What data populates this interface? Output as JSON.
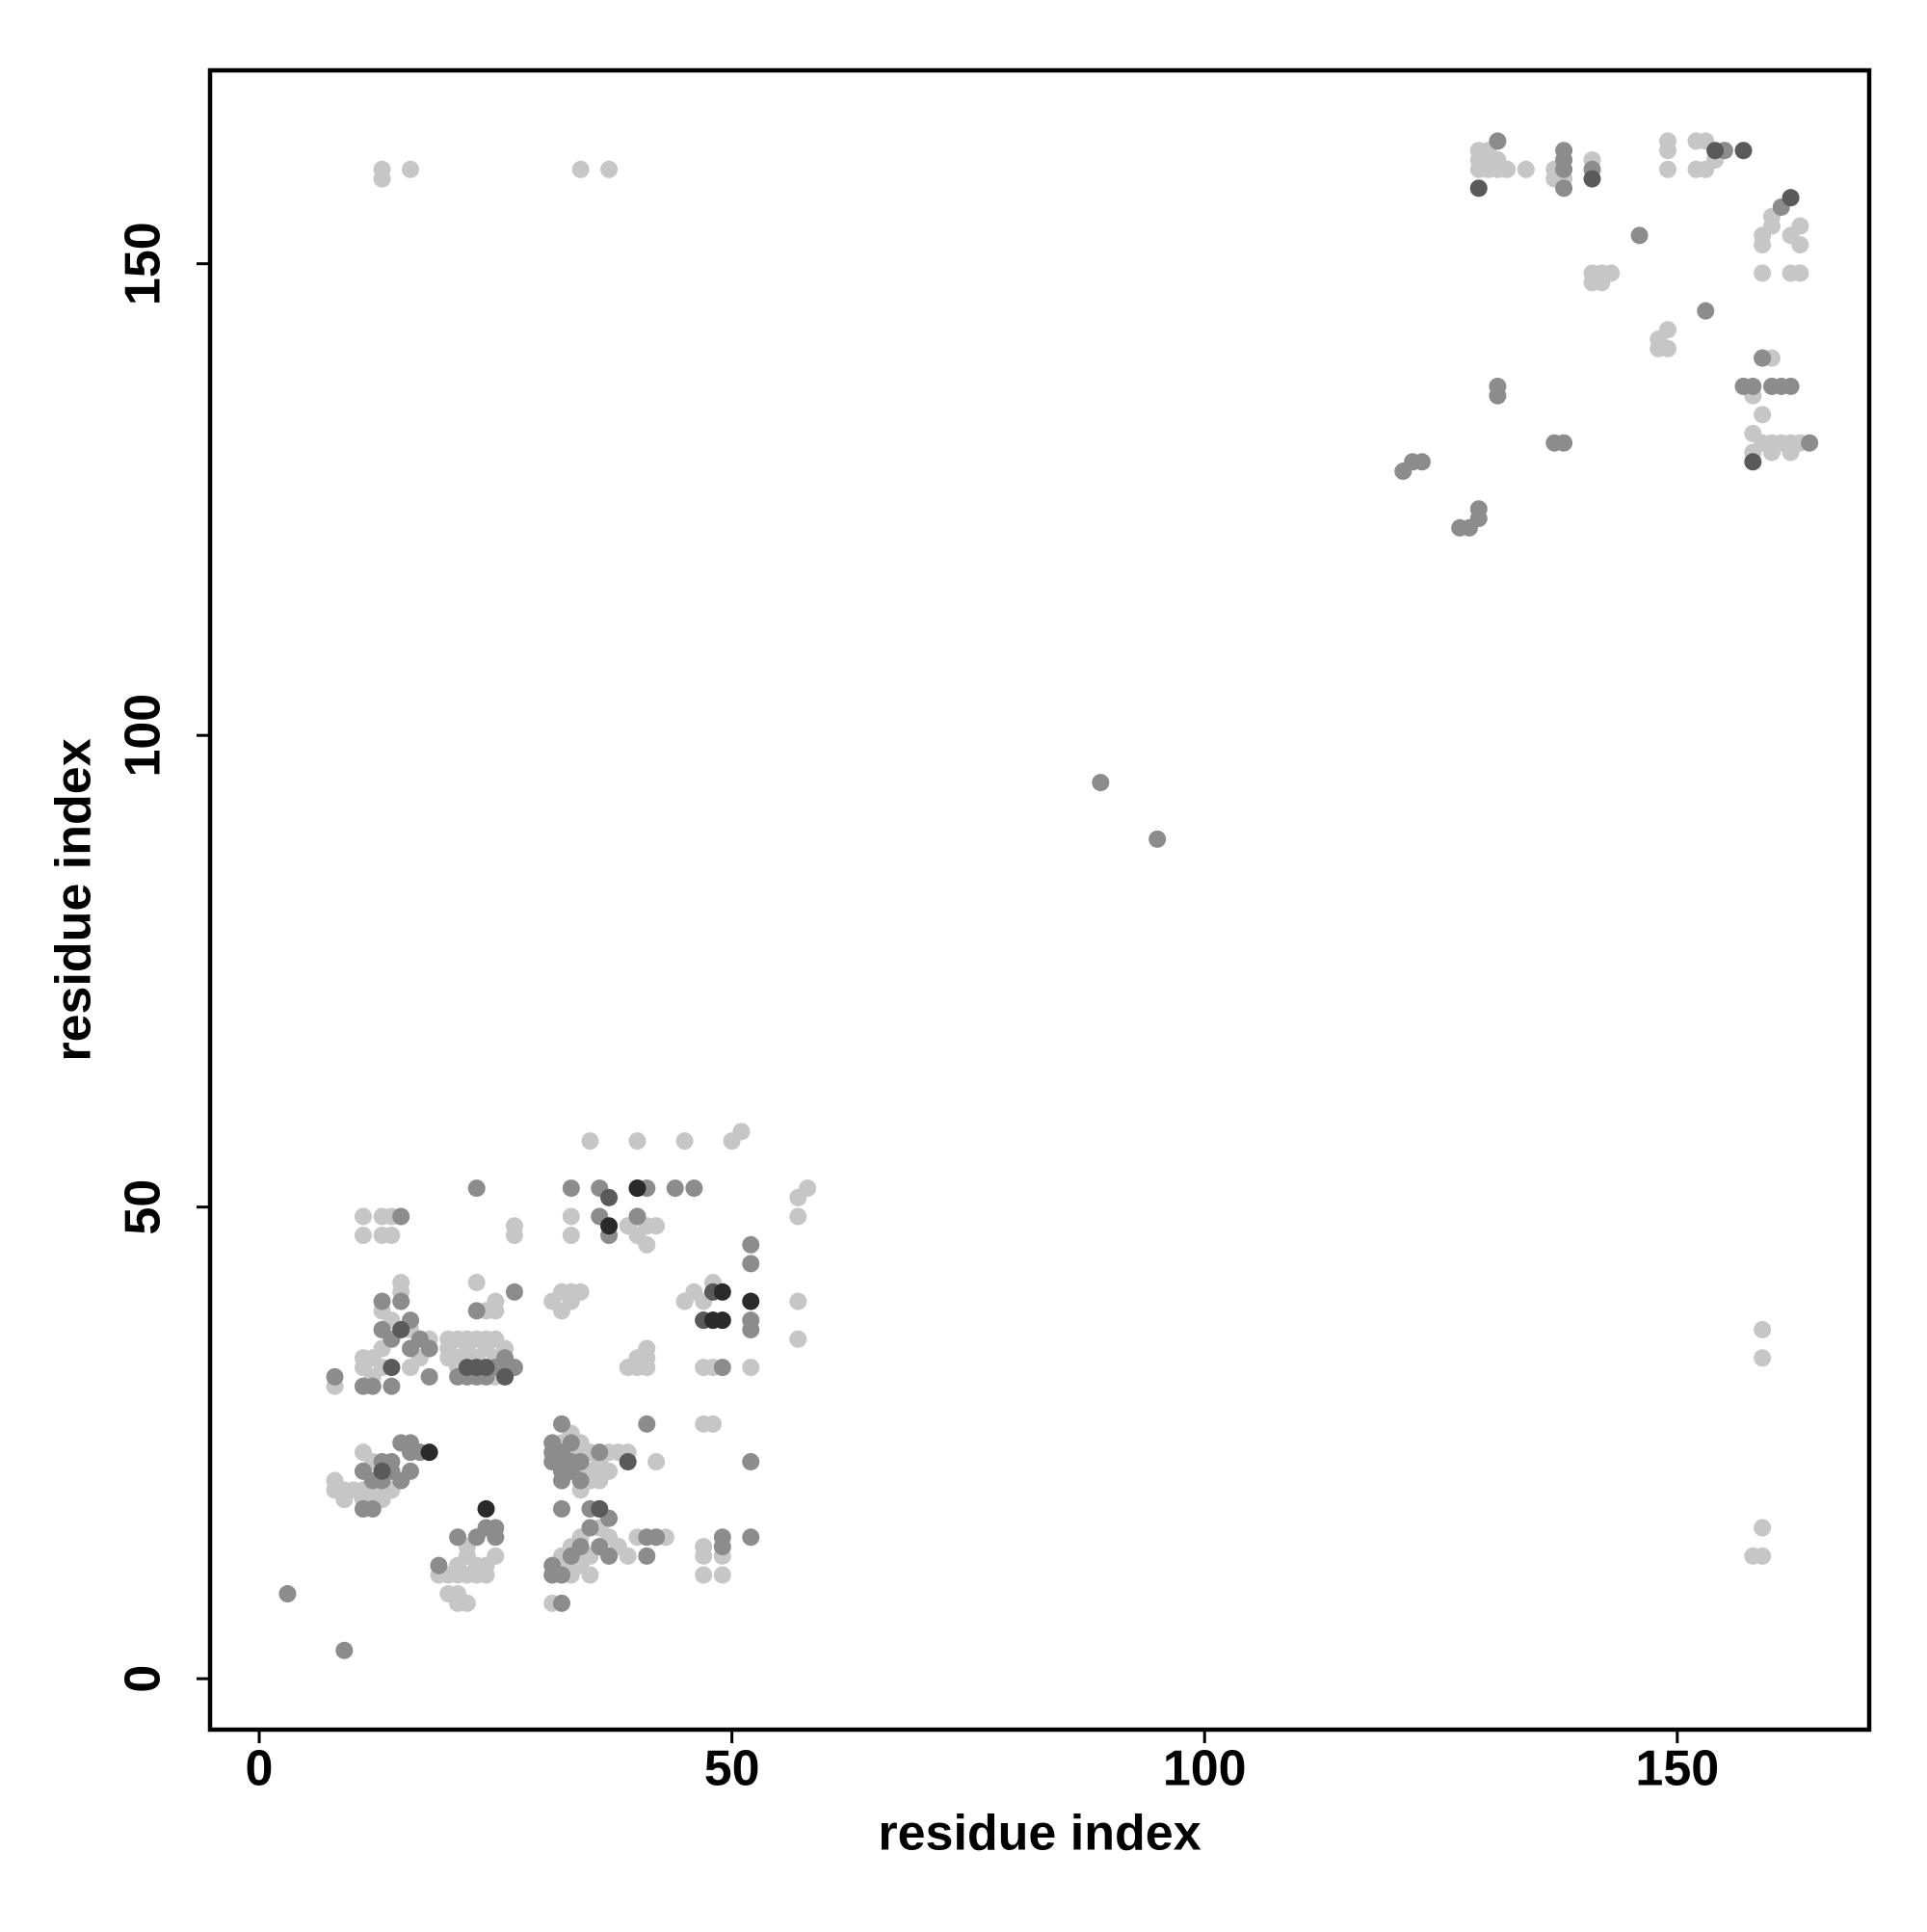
{
  "chart_data": {
    "type": "scatter",
    "xlabel": "residue index",
    "ylabel": "residue index",
    "xlim": [
      -5.2,
      170.3
    ],
    "ylim": [
      -5.4,
      170.5
    ],
    "xticks": [
      0,
      50,
      100,
      150
    ],
    "yticks": [
      0,
      50,
      100,
      150
    ],
    "series": [
      {
        "color": "#c6c6c6",
        "x": [
          13,
          13,
          16,
          34,
          37,
          159,
          159,
          159,
          158,
          159,
          129,
          129,
          129,
          130,
          130,
          130,
          131,
          131,
          132,
          134,
          137,
          137,
          138,
          141,
          141,
          149,
          149,
          149,
          152,
          153,
          152,
          153,
          154,
          160,
          159,
          159,
          160,
          162,
          163,
          163,
          159,
          162,
          163,
          141,
          142,
          143,
          141,
          142,
          148,
          149,
          148,
          149,
          159,
          160,
          157,
          158,
          159,
          158,
          159,
          160,
          161,
          162,
          163,
          158,
          160,
          162,
          8,
          8,
          9,
          9,
          10,
          11,
          11,
          12,
          12,
          13,
          13,
          14,
          11,
          12,
          8,
          11,
          11,
          12,
          12,
          13,
          13,
          15,
          15,
          13,
          14,
          15,
          16,
          17,
          18,
          16,
          11,
          11,
          13,
          13,
          14,
          14,
          20,
          20,
          20,
          21,
          21,
          21,
          22,
          22,
          22,
          23,
          23,
          24,
          24,
          25,
          25,
          25,
          24,
          25,
          25,
          23,
          27,
          27,
          26,
          19,
          20,
          20,
          21,
          21,
          21,
          21,
          22,
          22,
          23,
          23,
          24,
          24,
          25,
          22,
          22,
          32,
          33,
          33,
          34,
          34,
          34,
          35,
          35,
          35,
          36,
          36,
          37,
          37,
          38,
          39,
          42,
          34,
          36,
          31,
          32,
          32,
          33,
          33,
          33,
          34,
          34,
          34,
          35,
          36,
          37,
          38,
          39,
          40,
          43,
          35,
          31,
          32,
          33,
          34,
          32,
          33,
          33,
          33,
          35,
          40,
          45,
          50,
          51,
          39,
          40,
          40,
          41,
          41,
          42,
          39,
          40,
          40,
          41,
          41,
          41,
          45,
          46,
          47,
          48,
          47,
          48,
          52,
          57,
          57,
          57,
          57,
          58,
          47,
          48,
          47,
          47,
          47,
          49,
          49
        ],
        "y": [
          160,
          159,
          160,
          160,
          160,
          37,
          34,
          16,
          13,
          13,
          162,
          161,
          160,
          162,
          161,
          160,
          161,
          160,
          160,
          160,
          160,
          159,
          159,
          161,
          160,
          163,
          162,
          160,
          160,
          160,
          163,
          163,
          161,
          155,
          153,
          152,
          154,
          153,
          154,
          152,
          149,
          149,
          149,
          149,
          149,
          149,
          148,
          148,
          141,
          141,
          142,
          143,
          140,
          140,
          137,
          136,
          134,
          132,
          131,
          131,
          131,
          131,
          131,
          130,
          130,
          130,
          21,
          20,
          20,
          19,
          20,
          19,
          20,
          19,
          20,
          19,
          20,
          20,
          24,
          23,
          31,
          33,
          34,
          32,
          34,
          33,
          35,
          41,
          42,
          39,
          38,
          37,
          37,
          34,
          36,
          33,
          49,
          47,
          49,
          47,
          49,
          47,
          36,
          35,
          34,
          36,
          34,
          33,
          36,
          35,
          34,
          36,
          34,
          36,
          35,
          36,
          34,
          32,
          39,
          39,
          40,
          42,
          48,
          47,
          35,
          11,
          11,
          9,
          12,
          11,
          9,
          8,
          11,
          8,
          12,
          11,
          12,
          11,
          13,
          13,
          14,
          25,
          26,
          24,
          25,
          24,
          22,
          24,
          22,
          21,
          23,
          22,
          24,
          22,
          24,
          24,
          23,
          20,
          21,
          8,
          13,
          12,
          14,
          12,
          11,
          15,
          13,
          12,
          13,
          16,
          15,
          14,
          13,
          15,
          15,
          11,
          40,
          41,
          41,
          41,
          39,
          40,
          47,
          49,
          57,
          57,
          57,
          57,
          58,
          48,
          49,
          47,
          48,
          46,
          48,
          33,
          33,
          34,
          34,
          35,
          33,
          40,
          41,
          40,
          42,
          33,
          33,
          33,
          40,
          36,
          49,
          51,
          52,
          27,
          27,
          14,
          13,
          11,
          11,
          13
        ]
      },
      {
        "color": "#8c8c8c",
        "x": [
          89,
          95,
          131,
          138,
          138,
          138,
          138,
          146,
          155,
          161,
          153,
          159,
          157,
          158,
          160,
          161,
          162,
          164,
          131,
          131,
          137,
          138,
          121,
          122,
          123,
          127,
          128,
          129,
          129,
          141,
          3,
          9,
          11,
          12,
          11,
          12,
          13,
          14,
          13,
          14,
          15,
          16,
          16,
          17,
          15,
          16,
          8,
          11,
          12,
          13,
          15,
          13,
          16,
          16,
          17,
          18,
          18,
          14,
          15,
          14,
          21,
          22,
          23,
          24,
          25,
          26,
          27,
          26,
          23,
          27,
          23,
          19,
          21,
          23,
          24,
          25,
          25,
          31,
          31,
          31,
          32,
          32,
          32,
          32,
          33,
          33,
          33,
          34,
          34,
          36,
          41,
          32,
          31,
          31,
          32,
          32,
          33,
          34,
          35,
          36,
          36,
          37,
          37,
          41,
          42,
          41,
          32,
          35,
          33,
          36,
          36,
          37,
          40,
          44,
          46,
          41,
          40,
          47,
          49,
          52,
          52,
          52,
          52,
          52,
          49,
          49,
          52
        ],
        "y": [
          95,
          89,
          163,
          162,
          161,
          160,
          158,
          153,
          162,
          156,
          145,
          140,
          137,
          137,
          137,
          137,
          137,
          131,
          137,
          136,
          131,
          131,
          128,
          129,
          129,
          122,
          122,
          123,
          124,
          160,
          9,
          3,
          22,
          21,
          18,
          18,
          21,
          22,
          23,
          23,
          21,
          22,
          24,
          24,
          25,
          25,
          32,
          31,
          31,
          37,
          40,
          40,
          38,
          35,
          36,
          35,
          32,
          31,
          49,
          36,
          32,
          32,
          32,
          32,
          33,
          33,
          33,
          34,
          39,
          41,
          52,
          12,
          15,
          15,
          16,
          15,
          16,
          25,
          24,
          23,
          24,
          23,
          22,
          21,
          25,
          23,
          22,
          23,
          21,
          24,
          27,
          27,
          12,
          11,
          11,
          8,
          13,
          14,
          16,
          18,
          14,
          17,
          13,
          15,
          15,
          13,
          18,
          18,
          52,
          52,
          49,
          47,
          52,
          52,
          52,
          52,
          49,
          38,
          33,
          46,
          44,
          38,
          37,
          23,
          14,
          15,
          15
        ]
      },
      {
        "color": "#5a5a5a",
        "x": [
          129,
          141,
          154,
          157,
          162,
          158,
          15,
          14,
          24,
          23,
          22,
          26,
          37,
          39,
          48,
          47,
          36,
          13
        ],
        "y": [
          158,
          159,
          162,
          162,
          157,
          129,
          37,
          33,
          33,
          33,
          33,
          32,
          51,
          23,
          41,
          38,
          18,
          22
        ]
      },
      {
        "color": "#2a2a2a",
        "x": [
          18,
          24,
          37,
          40,
          48,
          49,
          52,
          49
        ],
        "y": [
          24,
          18,
          48,
          52,
          38,
          38,
          40,
          41
        ]
      }
    ]
  }
}
